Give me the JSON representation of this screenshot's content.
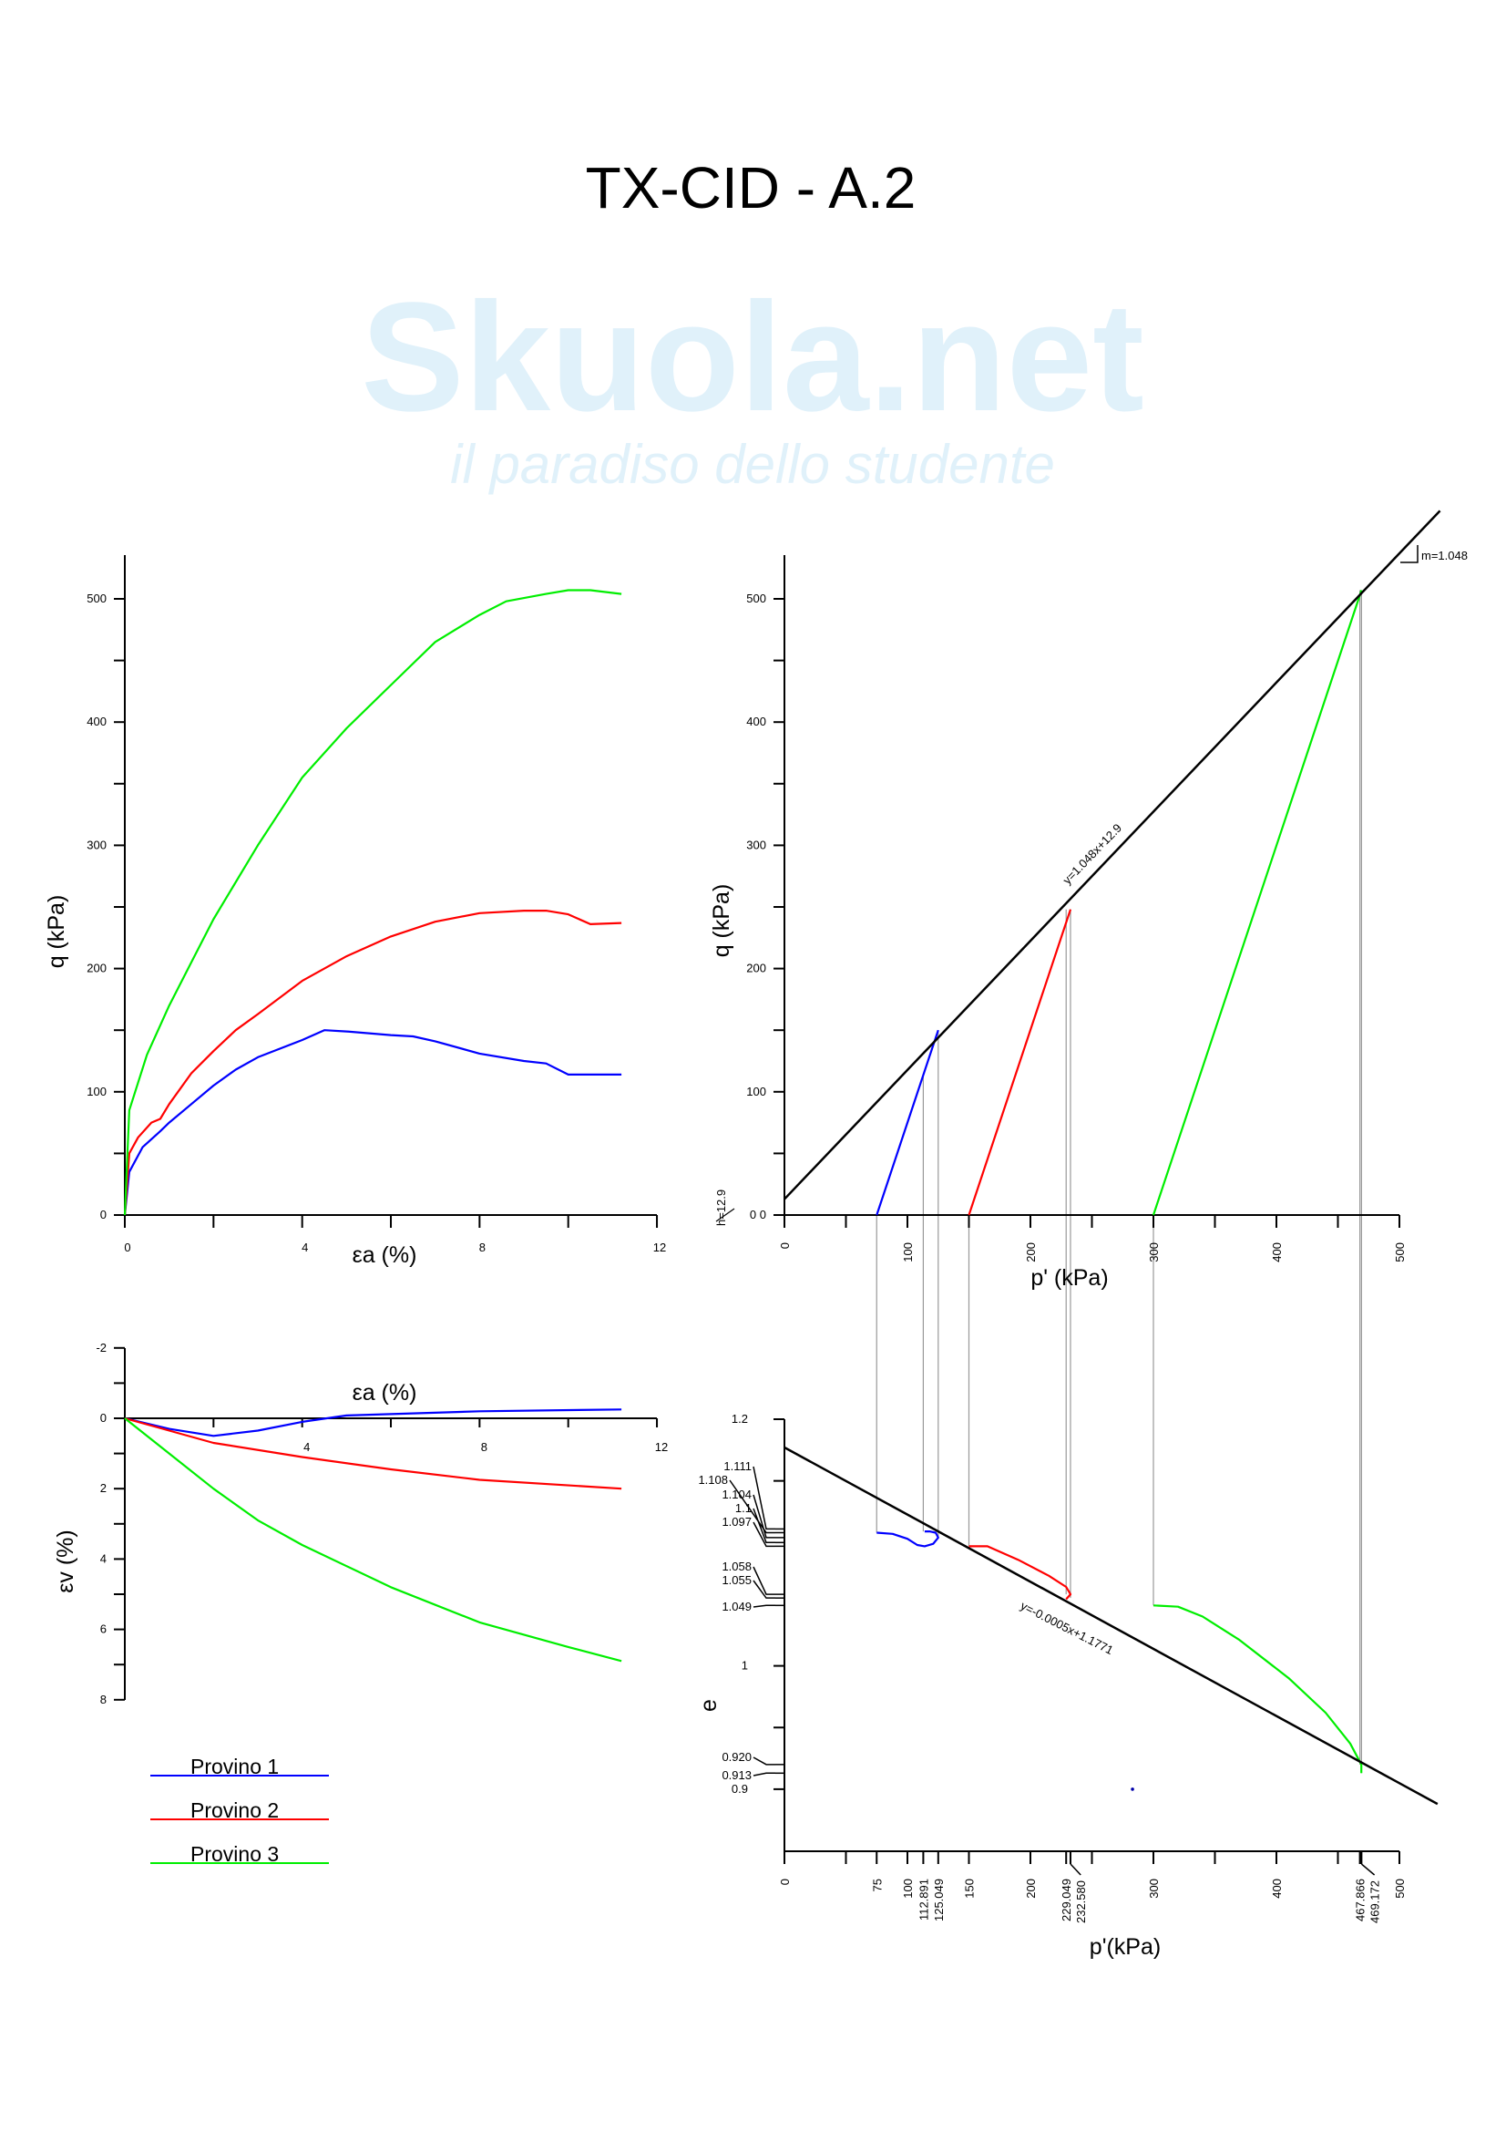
{
  "title": "TX-CID - A.2",
  "watermark": {
    "brand": "Skuola.net",
    "tagline": "il paradiso dello studente"
  },
  "colors": {
    "provino1": "#0000ff",
    "provino2": "#ff0000",
    "provino3": "#00ee00",
    "fit": "#000000",
    "connector": "#999999"
  },
  "legend": [
    "Provino 1",
    "Provino 2",
    "Provino 3"
  ],
  "chart_data": [
    {
      "id": "q-ea",
      "type": "line",
      "xlabel": "εa (%)",
      "ylabel": "q (kPa)",
      "xlim": [
        0,
        12
      ],
      "ylim": [
        0,
        500
      ],
      "xticks": [
        "0",
        "4",
        "8",
        "12"
      ],
      "xtick_values": [
        0,
        4,
        8,
        12
      ],
      "xminor": [
        2,
        6,
        10
      ],
      "yticks": [
        "0",
        "100",
        "200",
        "300",
        "400",
        "500"
      ],
      "ytick_values": [
        0,
        100,
        200,
        300,
        400,
        500
      ],
      "yminor": [
        50,
        150,
        250,
        350,
        450
      ],
      "series": [
        {
          "name": "Provino 1",
          "points": [
            [
              0,
              0
            ],
            [
              0.1,
              35
            ],
            [
              0.4,
              55
            ],
            [
              0.8,
              68
            ],
            [
              1,
              75
            ],
            [
              1.5,
              90
            ],
            [
              2,
              105
            ],
            [
              2.5,
              118
            ],
            [
              3,
              128
            ],
            [
              4,
              142
            ],
            [
              4.5,
              150
            ],
            [
              5,
              149
            ],
            [
              6,
              146
            ],
            [
              6.5,
              145
            ],
            [
              7,
              141
            ],
            [
              8,
              131
            ],
            [
              9,
              125
            ],
            [
              9.5,
              123
            ],
            [
              10,
              114
            ],
            [
              11.2,
              114
            ]
          ]
        },
        {
          "name": "Provino 2",
          "points": [
            [
              0,
              0
            ],
            [
              0.1,
              50
            ],
            [
              0.3,
              63
            ],
            [
              0.6,
              75
            ],
            [
              0.8,
              78
            ],
            [
              1,
              90
            ],
            [
              1.5,
              115
            ],
            [
              2,
              133
            ],
            [
              2.5,
              150
            ],
            [
              3,
              163
            ],
            [
              4,
              190
            ],
            [
              5,
              210
            ],
            [
              6,
              226
            ],
            [
              7,
              238
            ],
            [
              8,
              245
            ],
            [
              9,
              247
            ],
            [
              9.5,
              247
            ],
            [
              10,
              244
            ],
            [
              10.5,
              236
            ],
            [
              11.2,
              237
            ]
          ]
        },
        {
          "name": "Provino 3",
          "points": [
            [
              0,
              0
            ],
            [
              0.1,
              85
            ],
            [
              0.5,
              130
            ],
            [
              1,
              170
            ],
            [
              1.5,
              205
            ],
            [
              2,
              240
            ],
            [
              3,
              300
            ],
            [
              4,
              355
            ],
            [
              5,
              395
            ],
            [
              6,
              430
            ],
            [
              7,
              465
            ],
            [
              8,
              487
            ],
            [
              8.6,
              498
            ],
            [
              9.5,
              504
            ],
            [
              10,
              507
            ],
            [
              10.5,
              507
            ],
            [
              11.2,
              504
            ]
          ]
        }
      ]
    },
    {
      "id": "q-p",
      "type": "line",
      "xlabel": "p' (kPa)",
      "ylabel": "q (kPa)",
      "xlim": [
        0,
        500
      ],
      "ylim": [
        0,
        500
      ],
      "xticks": [
        "0",
        "100",
        "200",
        "300",
        "400",
        "500"
      ],
      "xtick_values": [
        0,
        100,
        200,
        300,
        400,
        500
      ],
      "xminor": [
        50,
        150,
        250,
        350,
        450
      ],
      "yticks": [
        "0 0",
        "100",
        "200",
        "300",
        "400",
        "500"
      ],
      "ytick_values": [
        0,
        100,
        200,
        300,
        400,
        500
      ],
      "yminor": [
        50,
        150,
        250,
        350,
        450
      ],
      "series": [
        {
          "name": "Provino 1",
          "points": [
            [
              75,
              0
            ],
            [
              125.049,
              150
            ]
          ]
        },
        {
          "name": "Provino 2",
          "points": [
            [
              150,
              0
            ],
            [
              232.58,
              248
            ]
          ]
        },
        {
          "name": "Provino 3",
          "points": [
            [
              300,
              0
            ],
            [
              469.172,
              507
            ]
          ]
        }
      ],
      "fit_line": {
        "label": "y=1.048x+12.9",
        "slope": 1.048,
        "intercept": 12.9,
        "xrange": [
          0,
          533
        ]
      },
      "slope_label": "m=1.048",
      "intercept_label": "h=12.9"
    },
    {
      "id": "ev-ea",
      "type": "line",
      "xlabel": "εa (%)",
      "ylabel": "εv (%)",
      "xlim": [
        0,
        12
      ],
      "ylim": [
        -2,
        8
      ],
      "xticks": [
        "4",
        "8",
        "12"
      ],
      "xtick_values": [
        4,
        8,
        12
      ],
      "xminor": [
        2,
        6,
        10
      ],
      "yticks": [
        "-2",
        "0",
        "2",
        "4",
        "6",
        "8"
      ],
      "ytick_values": [
        -2,
        0,
        2,
        4,
        6,
        8
      ],
      "yminor": [
        -1,
        1,
        3,
        5,
        7
      ],
      "series": [
        {
          "name": "Provino 1",
          "points": [
            [
              0,
              0
            ],
            [
              1,
              0.3
            ],
            [
              2,
              0.5
            ],
            [
              3,
              0.35
            ],
            [
              4,
              0.1
            ],
            [
              5,
              -0.08
            ],
            [
              6,
              -0.12
            ],
            [
              8,
              -0.2
            ],
            [
              11.2,
              -0.25
            ]
          ]
        },
        {
          "name": "Provino 2",
          "points": [
            [
              0,
              0
            ],
            [
              1,
              0.35
            ],
            [
              2,
              0.7
            ],
            [
              4,
              1.1
            ],
            [
              6,
              1.45
            ],
            [
              8,
              1.75
            ],
            [
              11.2,
              2.0
            ]
          ]
        },
        {
          "name": "Provino 3",
          "points": [
            [
              0,
              0
            ],
            [
              1,
              1.0
            ],
            [
              2,
              2.0
            ],
            [
              3,
              2.9
            ],
            [
              4,
              3.6
            ],
            [
              6,
              4.8
            ],
            [
              8,
              5.8
            ],
            [
              10,
              6.5
            ],
            [
              11.2,
              6.9
            ]
          ]
        }
      ]
    },
    {
      "id": "e-p",
      "type": "line",
      "xlabel": "p'(kPa)",
      "ylabel": "e",
      "xlim": [
        0,
        500
      ],
      "ylim": [
        0.85,
        1.2
      ],
      "xticks": [
        "0",
        "75",
        "100",
        "112.891",
        "125.049",
        "150",
        "200",
        "229.049",
        "232.580",
        "300",
        "400",
        "467.866",
        "469.172",
        "500"
      ],
      "xtick_values": [
        0,
        75,
        100,
        112.891,
        125.049,
        150,
        200,
        229.049,
        232.58,
        300,
        400,
        467.866,
        469.172,
        500
      ],
      "xminor": [
        50,
        250,
        350,
        450
      ],
      "yticks": [
        "1.2",
        "1",
        "0.9"
      ],
      "ytick_values": [
        1.2,
        1.0,
        0.9
      ],
      "yminor": [
        1.15,
        0.95
      ],
      "ymarked": [
        "1.111",
        "1.108",
        "1.104",
        "1.1",
        "1.097",
        "1.058",
        "1.055",
        "1.049",
        "0.920",
        "0.913"
      ],
      "ymarked_values": [
        1.111,
        1.108,
        1.104,
        1.1,
        1.097,
        1.058,
        1.055,
        1.049,
        0.92,
        0.913
      ],
      "series": [
        {
          "name": "Provino 1",
          "points": [
            [
              75,
              1.108
            ],
            [
              88,
              1.107
            ],
            [
              100,
              1.103
            ],
            [
              108,
              1.098
            ],
            [
              114,
              1.097
            ],
            [
              121,
              1.099
            ],
            [
              125,
              1.104
            ],
            [
              123,
              1.108
            ],
            [
              118,
              1.109
            ],
            [
              114,
              1.109
            ]
          ]
        },
        {
          "name": "Provino 2",
          "points": [
            [
              150,
              1.097
            ],
            [
              165,
              1.097
            ],
            [
              190,
              1.086
            ],
            [
              215,
              1.073
            ],
            [
              229,
              1.064
            ],
            [
              232.6,
              1.058
            ],
            [
              229,
              1.054
            ]
          ]
        },
        {
          "name": "Provino 3",
          "points": [
            [
              300,
              1.049
            ],
            [
              320,
              1.048
            ],
            [
              340,
              1.04
            ],
            [
              370,
              1.021
            ],
            [
              410,
              0.99
            ],
            [
              440,
              0.962
            ],
            [
              460,
              0.937
            ],
            [
              469,
              0.92
            ],
            [
              469,
              0.913
            ]
          ]
        }
      ],
      "fit_line": {
        "label": "y=-0.0005x+1.1771",
        "points": [
          [
            0,
            1.1771
          ],
          [
            531,
            0.888
          ]
        ]
      },
      "stray_point": [
        283,
        0.9
      ]
    }
  ],
  "connectors": [
    [
      75,
      0,
      1.108
    ],
    [
      112.891,
      114,
      1.109
    ],
    [
      125.049,
      150,
      1.104
    ],
    [
      150,
      0,
      1.097
    ],
    [
      229.049,
      248,
      1.058
    ],
    [
      232.58,
      248,
      1.055
    ],
    [
      300,
      0,
      1.049
    ],
    [
      467.866,
      507,
      0.92
    ],
    [
      469.172,
      507,
      0.913
    ]
  ]
}
